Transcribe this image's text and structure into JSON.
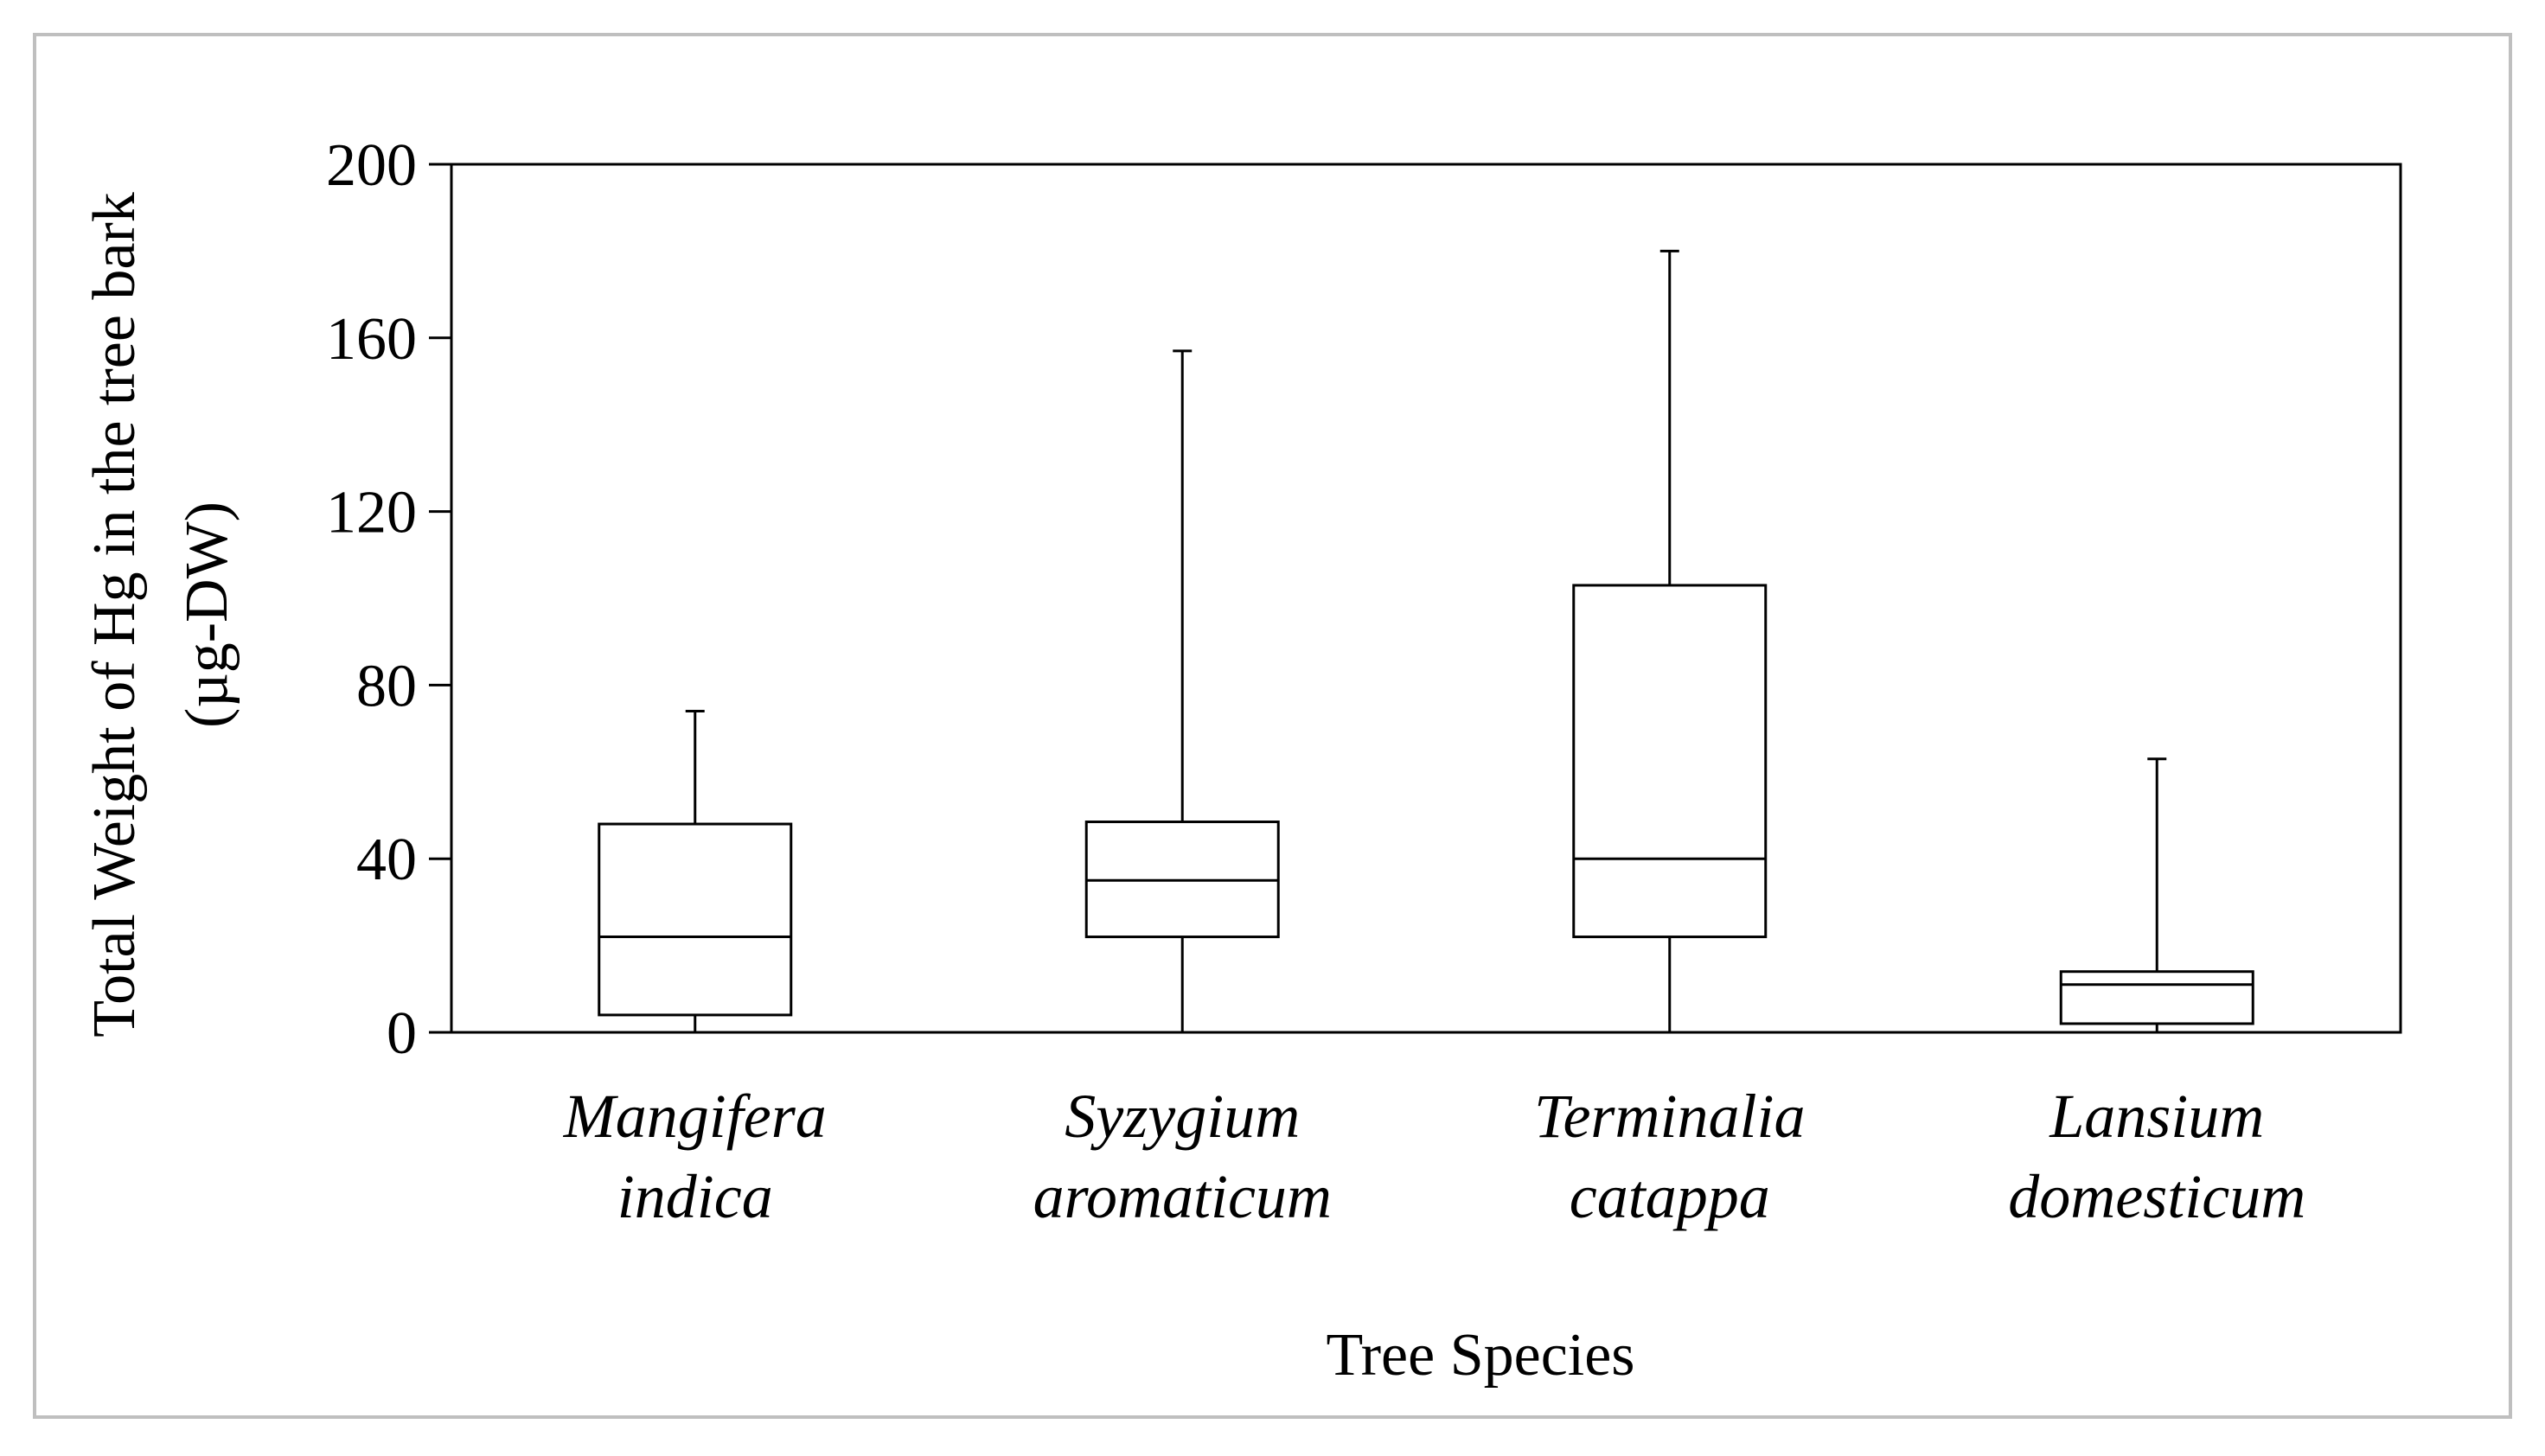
{
  "chart_data": {
    "type": "boxplot",
    "title": "",
    "xlabel": "Tree Species",
    "ylabel_line1": "Total Weight of Hg in the tree bark",
    "ylabel_line2": "(µg-DW)",
    "ylim": [
      0,
      200
    ],
    "yticks": [
      0,
      40,
      80,
      120,
      160,
      200
    ],
    "ytick_labels": [
      "0",
      "40",
      "80",
      "120",
      "160",
      "200"
    ],
    "grid": false,
    "categories": [
      {
        "line1": "Mangifera",
        "line2": "indica"
      },
      {
        "line1": "Syzygium",
        "line2": "aromaticum"
      },
      {
        "line1": "Terminalia",
        "line2": "catappa"
      },
      {
        "line1": "Lansium",
        "line2": "domesticum"
      }
    ],
    "boxes": [
      {
        "min": 0,
        "q1": 4,
        "median": 22,
        "q3": 48,
        "max": 74
      },
      {
        "min": 0,
        "q1": 22,
        "median": 35,
        "q3": 48.5,
        "max": 157
      },
      {
        "min": 0,
        "q1": 22,
        "median": 40,
        "q3": 103,
        "max": 180
      },
      {
        "min": 0,
        "q1": 2,
        "median": 11,
        "q3": 14,
        "max": 63
      }
    ],
    "colors": {
      "line": "#000000",
      "box_fill": "#ffffff",
      "frame": "#bfbfbf"
    }
  }
}
